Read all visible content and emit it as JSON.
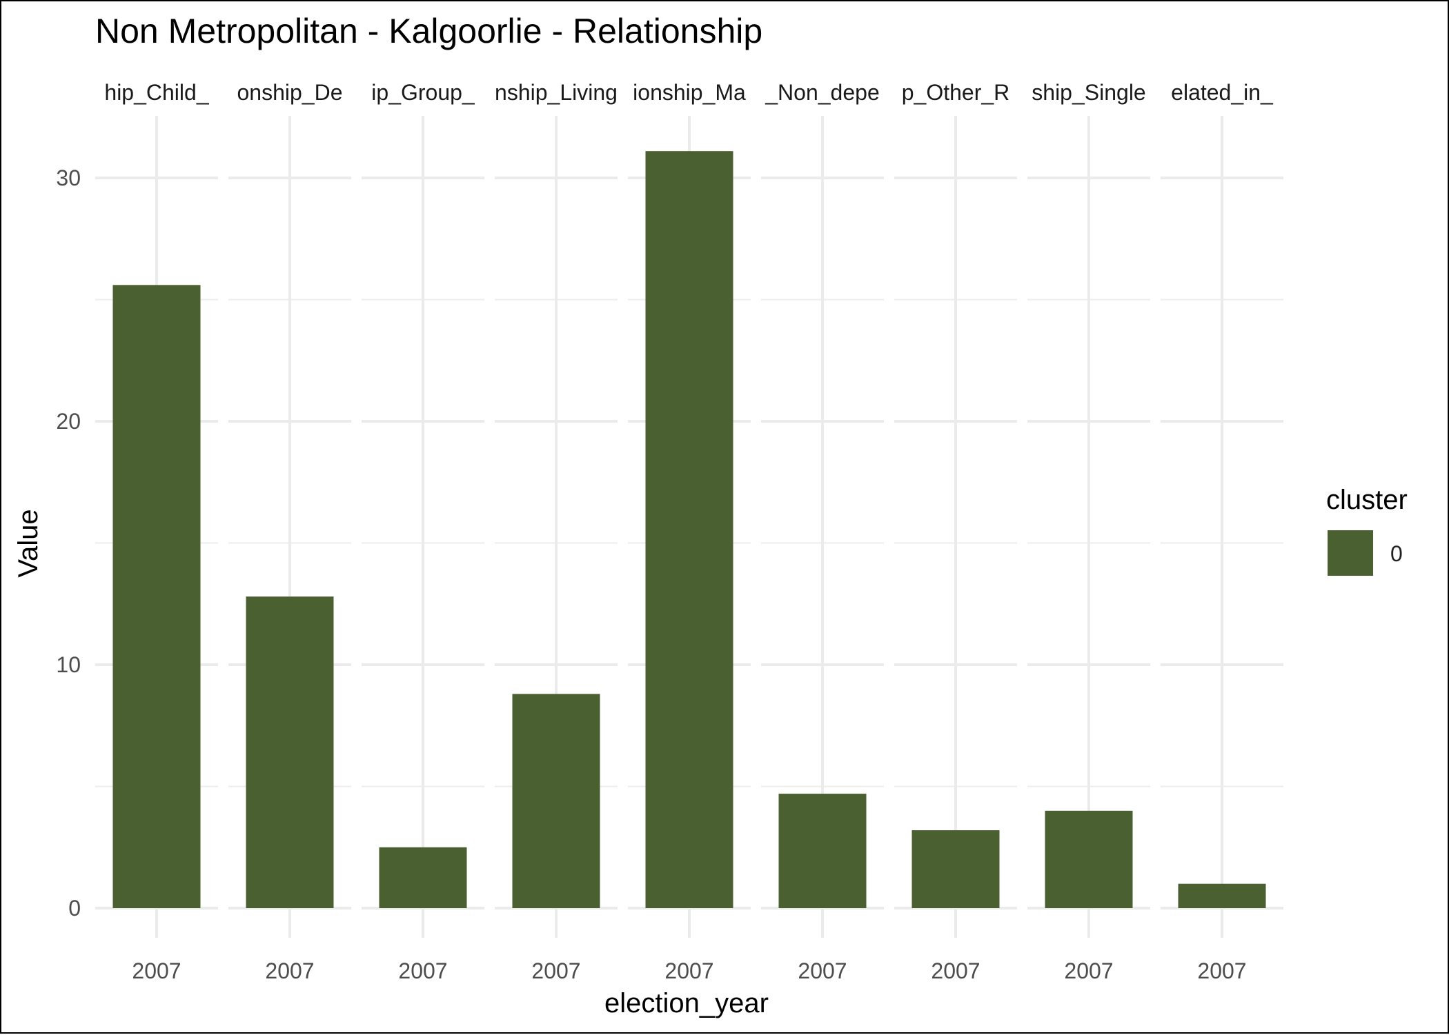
{
  "chart_data": {
    "type": "bar",
    "title": "Non Metropolitan - Kalgoorlie - Relationship",
    "xlabel": "election_year",
    "ylabel": "Value",
    "ylim": [
      0,
      32.3
    ],
    "yticks": [
      0,
      10,
      20,
      30
    ],
    "grid": true,
    "bar_color": "#4a6031",
    "legend": {
      "title": "cluster",
      "position": "right",
      "entries": [
        {
          "label": "0",
          "color": "#4a6031"
        }
      ]
    },
    "facets": [
      {
        "strip": "hip_Child_",
        "x": "2007",
        "value": 25.6
      },
      {
        "strip": "onship_De",
        "x": "2007",
        "value": 12.8
      },
      {
        "strip": "ip_Group_",
        "x": "2007",
        "value": 2.5
      },
      {
        "strip": "nship_Living",
        "x": "2007",
        "value": 8.8
      },
      {
        "strip": "ionship_Ma",
        "x": "2007",
        "value": 31.1
      },
      {
        "strip": "_Non_depe",
        "x": "2007",
        "value": 4.7
      },
      {
        "strip": "p_Other_R",
        "x": "2007",
        "value": 3.2
      },
      {
        "strip": "ship_Single",
        "x": "2007",
        "value": 4.0
      },
      {
        "strip": "elated_in_",
        "x": "2007",
        "value": 1.0
      }
    ]
  }
}
